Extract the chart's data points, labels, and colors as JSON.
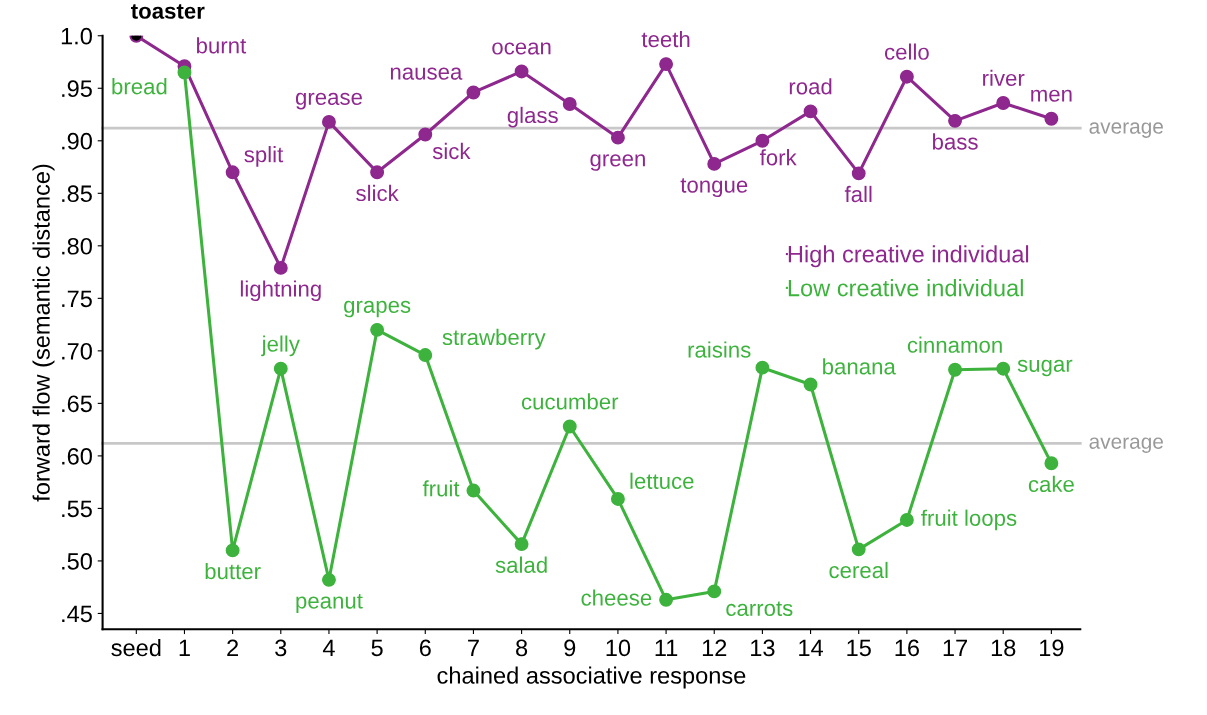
{
  "chart_data": {
    "type": "line",
    "xlabel": "chained associative response",
    "ylabel": "forward flow (semantic distance)",
    "categories": [
      "seed",
      "1",
      "2",
      "3",
      "4",
      "5",
      "6",
      "7",
      "8",
      "9",
      "10",
      "11",
      "12",
      "13",
      "14",
      "15",
      "16",
      "17",
      "18",
      "19"
    ],
    "series": [
      {
        "name": "High creative individual",
        "color": "#8e278e",
        "values": [
          1.0,
          0.971,
          0.87,
          0.779,
          0.918,
          0.87,
          0.906,
          0.946,
          0.966,
          0.935,
          0.903,
          0.973,
          0.878,
          0.9,
          0.928,
          0.869,
          0.961,
          0.919,
          0.936,
          0.921
        ]
      },
      {
        "name": "Low creative individual",
        "color": "#3db33d",
        "values": [
          null,
          0.965,
          0.51,
          0.683,
          0.482,
          0.72,
          0.696,
          0.567,
          0.516,
          0.628,
          0.559,
          0.463,
          0.471,
          0.684,
          0.668,
          0.511,
          0.539,
          0.682,
          0.683,
          0.593
        ]
      },
      {
        "type": "scatter",
        "color": "#000000",
        "values": [
          1.0,
          null,
          null,
          null,
          null,
          null,
          null,
          null,
          null,
          null,
          null,
          null,
          null,
          null,
          null,
          null,
          null,
          null,
          null,
          null
        ]
      }
    ],
    "ylim": [
      0.435,
      1.0
    ],
    "yticks": [
      {
        "value": 0.45,
        "label": ".45"
      },
      {
        "value": 0.5,
        "label": ".50"
      },
      {
        "value": 0.55,
        "label": ".55"
      },
      {
        "value": 0.6,
        "label": ".60"
      },
      {
        "value": 0.65,
        "label": ".65"
      },
      {
        "value": 0.7,
        "label": ".70"
      },
      {
        "value": 0.75,
        "label": ".75"
      },
      {
        "value": 0.8,
        "label": ".80"
      },
      {
        "value": 0.85,
        "label": ".85"
      },
      {
        "value": 0.9,
        "label": ".90"
      },
      {
        "value": 0.95,
        "label": ".95"
      },
      {
        "value": 1.0,
        "label": "1.0"
      }
    ],
    "ref_lines": [
      {
        "axis": "y",
        "value": 0.912,
        "label": "average",
        "color": "#c8c8c8"
      },
      {
        "axis": "y",
        "value": 0.612,
        "label": "average",
        "color": "#c8c8c8"
      }
    ],
    "marker": "circle",
    "grid": false,
    "legend": "right",
    "annotations": [
      {
        "text": "toaster",
        "x": "seed",
        "y": 1.0
      },
      {
        "text": "burnt",
        "x": "1",
        "y": 0.971
      },
      {
        "text": "split",
        "x": "2",
        "y": 0.87
      },
      {
        "text": "lightning",
        "x": "3",
        "y": 0.779
      },
      {
        "text": "grease",
        "x": "4",
        "y": 0.918
      },
      {
        "text": "slick",
        "x": "5",
        "y": 0.87
      },
      {
        "text": "sick",
        "x": "6",
        "y": 0.906
      },
      {
        "text": "nausea",
        "x": "7",
        "y": 0.946
      },
      {
        "text": "ocean",
        "x": "8",
        "y": 0.966
      },
      {
        "text": "glass",
        "x": "9",
        "y": 0.935
      },
      {
        "text": "green",
        "x": "10",
        "y": 0.903
      },
      {
        "text": "teeth",
        "x": "11",
        "y": 0.973
      },
      {
        "text": "tongue",
        "x": "12",
        "y": 0.878
      },
      {
        "text": "fork",
        "x": "13",
        "y": 0.9
      },
      {
        "text": "road",
        "x": "14",
        "y": 0.928
      },
      {
        "text": "fall",
        "x": "15",
        "y": 0.869
      },
      {
        "text": "cello",
        "x": "16",
        "y": 0.961
      },
      {
        "text": "bass",
        "x": "17",
        "y": 0.919
      },
      {
        "text": "river",
        "x": "18",
        "y": 0.936
      },
      {
        "text": "men",
        "x": "19",
        "y": 0.921
      },
      {
        "text": "bread",
        "x": "1",
        "y": 0.965
      },
      {
        "text": "butter",
        "x": "2",
        "y": 0.51
      },
      {
        "text": "jelly",
        "x": "3",
        "y": 0.683
      },
      {
        "text": "peanut",
        "x": "4",
        "y": 0.482
      },
      {
        "text": "grapes",
        "x": "5",
        "y": 0.72
      },
      {
        "text": "strawberry",
        "x": "6",
        "y": 0.696
      },
      {
        "text": "fruit",
        "x": "7",
        "y": 0.567
      },
      {
        "text": "salad",
        "x": "8",
        "y": 0.516
      },
      {
        "text": "cucumber",
        "x": "9",
        "y": 0.628
      },
      {
        "text": "lettuce",
        "x": "10",
        "y": 0.559
      },
      {
        "text": "cheese",
        "x": "11",
        "y": 0.463
      },
      {
        "text": "carrots",
        "x": "12",
        "y": 0.471
      },
      {
        "text": "raisins",
        "x": "13",
        "y": 0.684
      },
      {
        "text": "banana",
        "x": "14",
        "y": 0.668
      },
      {
        "text": "cereal",
        "x": "15",
        "y": 0.511
      },
      {
        "text": "fruit loops",
        "x": "16",
        "y": 0.539
      },
      {
        "text": "cinnamon",
        "x": "17",
        "y": 0.682
      },
      {
        "text": "sugar",
        "x": "18",
        "y": 0.683
      },
      {
        "text": "cake",
        "x": "19",
        "y": 0.593
      }
    ]
  }
}
